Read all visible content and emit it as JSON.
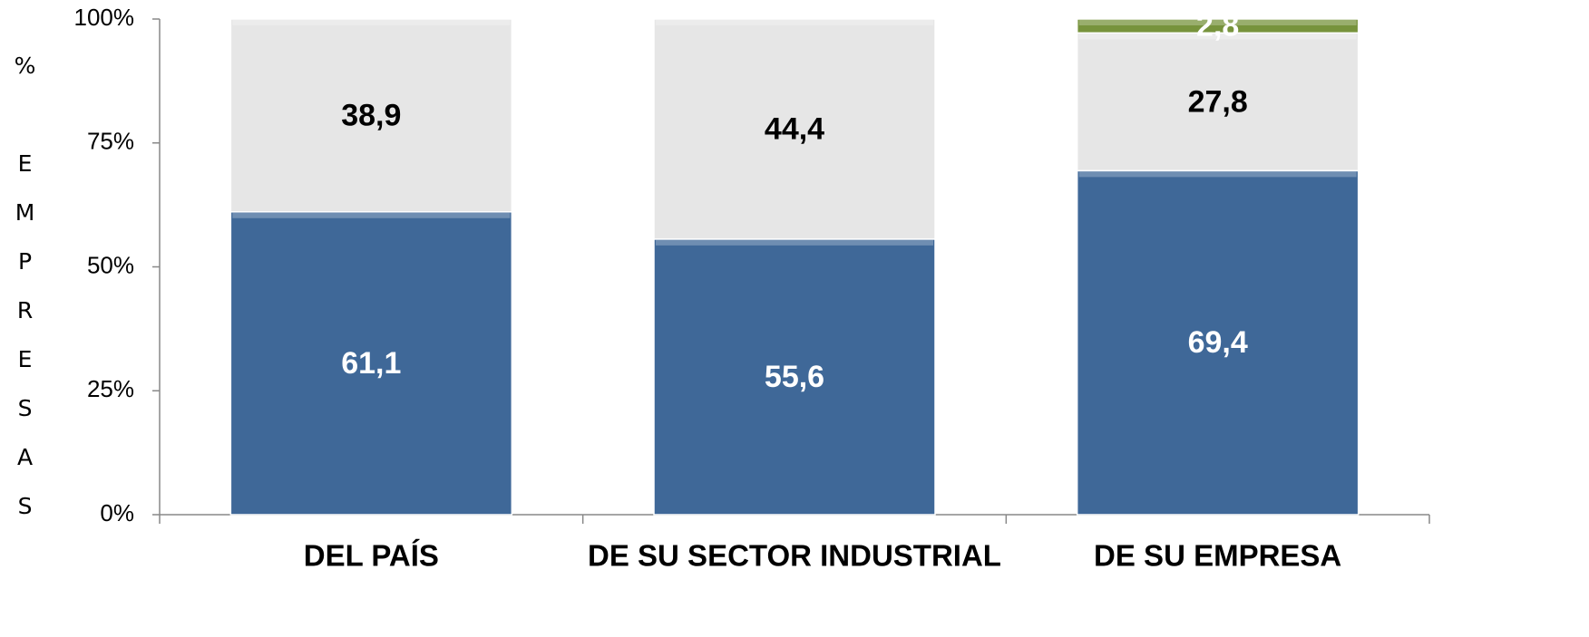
{
  "chart_data": {
    "type": "stacked_bar",
    "ylabel": "% EMPRESAS",
    "categories": [
      "DEL PAÍS",
      "DE SU SECTOR INDUSTRIAL",
      "DE SU EMPRESA"
    ],
    "series": [
      {
        "color": "#3f6898",
        "label_color": "#ffffff",
        "values": [
          61.1,
          55.6,
          69.4
        ],
        "value_labels": [
          "61,1",
          "55,6",
          "69,4"
        ]
      },
      {
        "color": "#e6e6e6",
        "label_color": "#000000",
        "values": [
          38.9,
          44.4,
          27.8
        ],
        "value_labels": [
          "38,9",
          "44,4",
          "27,8"
        ]
      },
      {
        "color": "#77933c",
        "label_color": "#ffffff",
        "values": [
          null,
          null,
          2.8
        ],
        "value_labels": [
          null,
          null,
          "2,8"
        ]
      }
    ],
    "ylim": [
      0,
      100
    ],
    "yticks": [
      {
        "value": 0,
        "label": "0%"
      },
      {
        "value": 25,
        "label": "25%"
      },
      {
        "value": 50,
        "label": "50%"
      },
      {
        "value": 75,
        "label": "75%"
      },
      {
        "value": 100,
        "label": "100%"
      }
    ]
  }
}
